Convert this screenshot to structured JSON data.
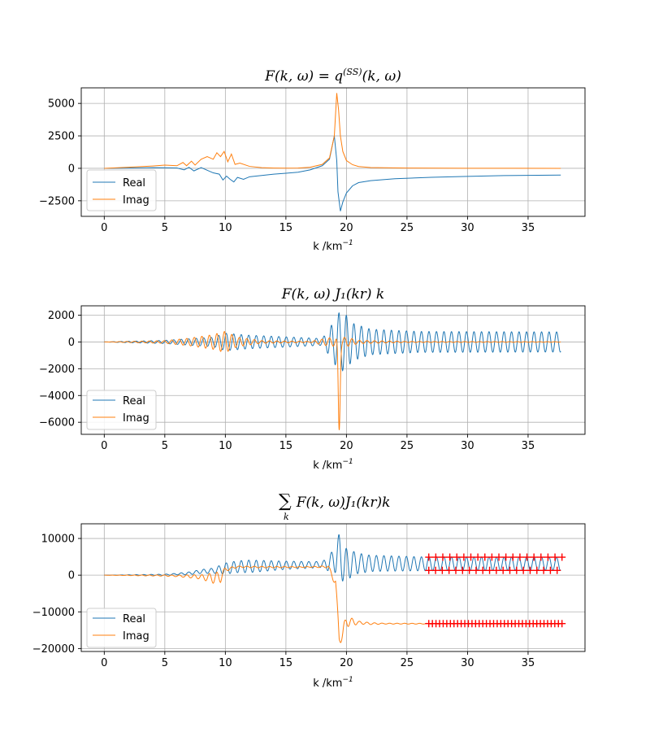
{
  "chart_data": [
    {
      "type": "line",
      "title": "F(k, ω) = q^(SS)(k, ω)",
      "title_parts": {
        "main": "F(k, ω) = q",
        "sup": "(SS)",
        "tail": "(k, ω)"
      },
      "xlabel": "k /km",
      "xlabel_sup": "−1",
      "xlim": [
        -1.9,
        39.7
      ],
      "ylim": [
        -3700,
        6200
      ],
      "xticks": [
        0,
        5,
        10,
        15,
        20,
        25,
        30,
        35
      ],
      "xtick_labels": [
        "0",
        "5",
        "10",
        "15",
        "20",
        "25",
        "30",
        "35"
      ],
      "yticks": [
        -2500,
        0,
        2500,
        5000
      ],
      "ytick_labels": [
        "−2500",
        "0",
        "2500",
        "5000"
      ],
      "grid": true,
      "legend": {
        "position": "lower-left",
        "entries": [
          "Real",
          "Imag"
        ]
      },
      "series": [
        {
          "name": "Real",
          "color": "#1f77b4",
          "x": [
            0,
            2,
            4,
            5,
            6,
            6.6,
            7,
            7.4,
            8,
            8.5,
            9,
            9.5,
            9.8,
            10.1,
            10.4,
            10.7,
            11,
            11.5,
            12,
            13,
            14,
            15,
            16,
            17,
            18,
            18.6,
            19,
            19.2,
            19.3,
            19.5,
            19.7,
            20,
            20.5,
            21,
            22,
            24,
            27,
            30,
            33,
            37.7
          ],
          "y": [
            0,
            20,
            50,
            40,
            30,
            -120,
            80,
            -200,
            60,
            -150,
            -350,
            -450,
            -900,
            -600,
            -850,
            -1050,
            -700,
            -850,
            -650,
            -550,
            -450,
            -380,
            -300,
            -120,
            200,
            700,
            2500,
            600,
            -1800,
            -3300,
            -2600,
            -1900,
            -1350,
            -1100,
            -950,
            -800,
            -690,
            -620,
            -560,
            -520
          ]
        },
        {
          "name": "Imag",
          "color": "#ff7f0e",
          "x": [
            0,
            2,
            4,
            5,
            6,
            6.5,
            6.8,
            7.2,
            7.5,
            8,
            8.5,
            9,
            9.3,
            9.6,
            9.9,
            10.2,
            10.5,
            10.8,
            11.2,
            12,
            13,
            14,
            15,
            16,
            17,
            18,
            18.6,
            19,
            19.2,
            19.35,
            19.5,
            19.7,
            20,
            20.5,
            21,
            22,
            25,
            30,
            37.7
          ],
          "y": [
            0,
            80,
            180,
            250,
            200,
            450,
            200,
            550,
            250,
            700,
            900,
            700,
            1200,
            900,
            1300,
            500,
            1100,
            300,
            400,
            150,
            50,
            20,
            10,
            20,
            80,
            300,
            800,
            2500,
            5800,
            4500,
            2500,
            1300,
            600,
            280,
            140,
            60,
            20,
            5,
            0
          ]
        }
      ]
    },
    {
      "type": "line",
      "title": "F(k, ω) J₁(kr) k",
      "xlabel": "k /km",
      "xlabel_sup": "−1",
      "xlim": [
        -1.9,
        39.7
      ],
      "ylim": [
        -6900,
        2700
      ],
      "xticks": [
        0,
        5,
        10,
        15,
        20,
        25,
        30,
        35
      ],
      "xtick_labels": [
        "0",
        "5",
        "10",
        "15",
        "20",
        "25",
        "30",
        "35"
      ],
      "yticks": [
        -6000,
        -4000,
        -2000,
        0,
        2000
      ],
      "ytick_labels": [
        "−6000",
        "−4000",
        "−2000",
        "0",
        "2000"
      ],
      "grid": true,
      "legend": {
        "position": "lower-left",
        "entries": [
          "Real",
          "Imag"
        ]
      },
      "series": [
        {
          "name": "Real",
          "color": "#1f77b4",
          "kind": "oscillation",
          "x_start": 0,
          "x_end": 37.7,
          "period": 0.62,
          "phase": 0,
          "envelope_x": [
            0,
            5,
            9,
            10,
            12,
            15,
            18,
            18.8,
            19.4,
            19.9,
            20.5,
            22,
            26,
            37.7
          ],
          "envelope_y": [
            0,
            120,
            350,
            650,
            500,
            380,
            250,
            1300,
            2200,
            2100,
            1400,
            950,
            780,
            750
          ]
        },
        {
          "name": "Imag",
          "color": "#ff7f0e",
          "kind": "oscillation_with_spike",
          "x_start": 0,
          "x_end": 37.7,
          "period": 0.62,
          "phase": 1.57,
          "envelope_x": [
            0,
            5,
            7,
            9,
            10,
            11,
            13,
            17,
            18.5,
            20,
            21,
            25,
            37.7
          ],
          "envelope_y": [
            0,
            100,
            280,
            550,
            800,
            350,
            100,
            40,
            300,
            350,
            120,
            40,
            20
          ],
          "spike": {
            "center": 19.4,
            "width": 0.11,
            "depth": -6500
          }
        }
      ]
    },
    {
      "type": "line",
      "title": "Σ_k F(k, ω) J₁(kr) k",
      "title_parts": {
        "sigma": "∑",
        "sub": "k",
        "tail": "F(k, ω)J₁(kr)k"
      },
      "xlabel": "k /km",
      "xlabel_sup": "−1",
      "xlim": [
        -1.9,
        39.7
      ],
      "ylim": [
        -20800,
        14000
      ],
      "xticks": [
        0,
        5,
        10,
        15,
        20,
        25,
        30,
        35
      ],
      "xtick_labels": [
        "0",
        "5",
        "10",
        "15",
        "20",
        "25",
        "30",
        "35"
      ],
      "yticks": [
        -20000,
        -10000,
        0,
        10000
      ],
      "ytick_labels": [
        "−20000",
        "−10000",
        "0",
        "10000"
      ],
      "grid": true,
      "legend": {
        "position": "lower-left",
        "entries": [
          "Real",
          "Imag"
        ]
      },
      "series": [
        {
          "name": "Real",
          "color": "#1f77b4",
          "kind": "oscillation_about_trend",
          "x_start": 0,
          "x_end": 37.7,
          "period": 0.62,
          "phase": 0,
          "trend_x": [
            0,
            5,
            7,
            8,
            9,
            10,
            11,
            13,
            15,
            17,
            18.5,
            19.3,
            20,
            20.5,
            21,
            23,
            26,
            37.7
          ],
          "trend_y": [
            0,
            100,
            500,
            1000,
            1200,
            1800,
            2300,
            2500,
            2700,
            2800,
            3000,
            5500,
            2500,
            3500,
            3200,
            3200,
            3100,
            3100
          ],
          "envelope_x": [
            0,
            6,
            9,
            10,
            12,
            15,
            18,
            18.8,
            19.4,
            19.9,
            20.6,
            22,
            26,
            37.7
          ],
          "envelope_y": [
            0,
            200,
            700,
            1500,
            1700,
            1100,
            800,
            2500,
            6000,
            5000,
            3000,
            2200,
            1900,
            1800
          ]
        },
        {
          "name": "Imag",
          "color": "#ff7f0e",
          "kind": "oscillation_about_trend",
          "x_start": 0,
          "x_end": 37.7,
          "period": 0.62,
          "phase": 1.57,
          "trend_x": [
            0,
            5,
            7,
            8,
            9,
            9.6,
            10,
            11,
            13,
            16,
            18.5,
            19.1,
            19.4,
            19.7,
            20,
            20.5,
            22,
            37.7
          ],
          "trend_y": [
            0,
            -100,
            -300,
            -500,
            -800,
            -500,
            1500,
            2300,
            2200,
            2200,
            2300,
            -2000,
            -17000,
            -16000,
            -12500,
            -12800,
            -13200,
            -13300
          ],
          "envelope_x": [
            0,
            6,
            8,
            9,
            9.6,
            10,
            11,
            13,
            17,
            18.5,
            19.3,
            19.7,
            20.3,
            21,
            23,
            37.7
          ],
          "envelope_y": [
            0,
            200,
            600,
            1400,
            1500,
            500,
            200,
            200,
            100,
            300,
            1500,
            2000,
            1200,
            400,
            120,
            40
          ]
        },
        {
          "name": "Real markers (upper)",
          "color": "#ff0000",
          "marker": "+",
          "x_start": 26.8,
          "x_end": 37.8,
          "count": 20,
          "y": 4900
        },
        {
          "name": "Real markers (lower)",
          "color": "#ff0000",
          "marker": "+",
          "x_start": 26.8,
          "x_end": 37.4,
          "count": 20,
          "y": 1300
        },
        {
          "name": "Imag markers",
          "color": "#ff0000",
          "marker": "+",
          "x_start": 26.8,
          "x_end": 37.8,
          "count": 38,
          "y": -13200
        }
      ]
    }
  ],
  "colors": {
    "real": "#1f77b4",
    "imag": "#ff7f0e",
    "marker": "#ff0000",
    "grid": "#b0b0b0"
  }
}
